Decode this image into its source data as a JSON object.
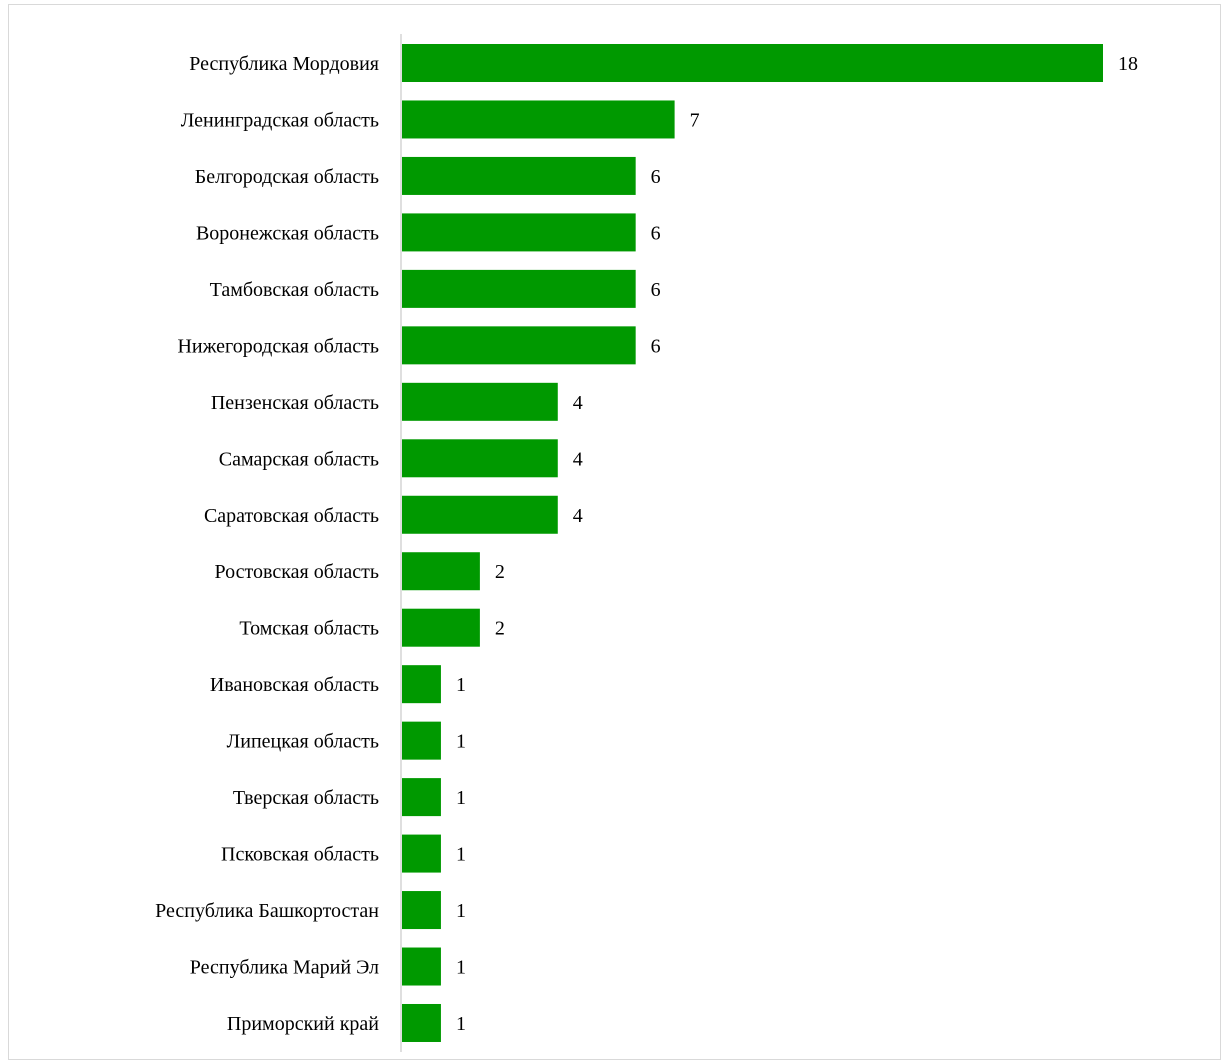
{
  "chart_data": {
    "type": "bar",
    "orientation": "horizontal",
    "title": "",
    "xlabel": "",
    "ylabel": "",
    "xlim": [
      0,
      18
    ],
    "grid": false,
    "legend": "none",
    "bar_color": "#009900",
    "categories": [
      "Республика Мордовия",
      "Ленинградская область",
      "Белгородская область",
      "Воронежская область",
      "Тамбовская область",
      "Нижегородская область",
      "Пензенская область",
      "Самарская область",
      "Саратовская область",
      "Ростовская область",
      "Томская область",
      "Ивановская область",
      "Липецкая область",
      "Тверская область",
      "Псковская область",
      "Республика Башкортостан",
      "Республика Марий Эл",
      "Приморский край"
    ],
    "values": [
      18,
      7,
      6,
      6,
      6,
      6,
      4,
      4,
      4,
      2,
      2,
      1,
      1,
      1,
      1,
      1,
      1,
      1
    ]
  }
}
